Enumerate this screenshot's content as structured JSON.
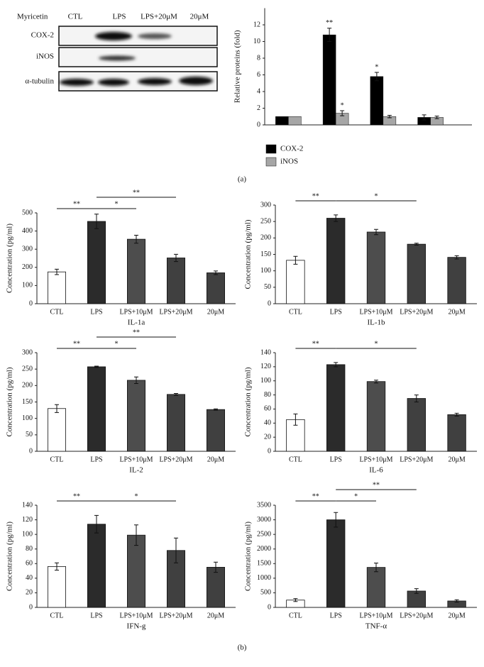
{
  "blot": {
    "treatment_label": "Myricetin",
    "lanes": [
      "CTL",
      "LPS",
      "LPS+20μM",
      "20μM"
    ],
    "rows": [
      "COX-2",
      "iNOS",
      "α-tubulin"
    ]
  },
  "panel_labels": [
    "(a)",
    "(b)"
  ],
  "chart_data": [
    {
      "type": "bar",
      "ylabel": "Relative proteins (fold)",
      "categories": [
        null,
        null,
        null,
        null
      ],
      "series": [
        {
          "name": "COX-2",
          "color": "#000000",
          "values": [
            1,
            10.8,
            5.8,
            0.9
          ],
          "errors": [
            0,
            0.8,
            0.5,
            0.3
          ],
          "significance": [
            null,
            "**",
            "*",
            null
          ]
        },
        {
          "name": "iNOS",
          "color": "#a6a6a6",
          "values": [
            1,
            1.4,
            1.0,
            0.9
          ],
          "errors": [
            0,
            0.3,
            0.15,
            0.15
          ],
          "significance": [
            null,
            "*",
            null,
            null
          ]
        }
      ],
      "ylim": [
        0,
        14
      ],
      "yticks": [
        0,
        2,
        4,
        6,
        8,
        10,
        12
      ],
      "legend": "bottom"
    },
    {
      "type": "bar",
      "xlabel": "IL-1a",
      "ylabel": "Concentration (pg/ml)",
      "categories": [
        "CTL",
        "LPS",
        "LPS+10μM",
        "LPS+20μM",
        "20μM"
      ],
      "values": [
        175,
        453,
        355,
        252,
        170
      ],
      "errors": [
        15,
        40,
        22,
        20,
        10
      ],
      "colors": [
        "#ffffff",
        "#2b2b2b",
        "#4d4d4d",
        "#404040",
        "#404040"
      ],
      "ylim": [
        0,
        500
      ],
      "yticks": [
        0,
        100,
        200,
        300,
        400,
        500
      ],
      "comparisons": [
        {
          "between": [
            0,
            1
          ],
          "label": "**"
        },
        {
          "between": [
            1,
            2
          ],
          "label": "*"
        },
        {
          "between": [
            1,
            3
          ],
          "label": "**"
        }
      ]
    },
    {
      "type": "bar",
      "xlabel": "IL-1b",
      "ylabel": "Concentration (pg/ml)",
      "categories": [
        "CTL",
        "LPS",
        "LPS+10μM",
        "LPS+20μM",
        "20μM"
      ],
      "values": [
        132,
        260,
        218,
        181,
        141
      ],
      "errors": [
        12,
        10,
        8,
        3,
        5
      ],
      "colors": [
        "#ffffff",
        "#2b2b2b",
        "#4d4d4d",
        "#404040",
        "#404040"
      ],
      "ylim": [
        0,
        300
      ],
      "yticks": [
        0,
        50,
        100,
        150,
        200,
        250,
        300
      ],
      "comparisons": [
        {
          "between": [
            0,
            1
          ],
          "label": "**"
        },
        {
          "between": [
            1,
            3
          ],
          "label": "*"
        }
      ]
    },
    {
      "type": "bar",
      "xlabel": "IL-2",
      "ylabel": "Concentration (pg/ml)",
      "categories": [
        "CTL",
        "LPS",
        "LPS+10μM",
        "LPS+20μM",
        "20μM"
      ],
      "values": [
        130,
        257,
        216,
        173,
        127
      ],
      "errors": [
        12,
        2,
        10,
        3,
        2
      ],
      "colors": [
        "#ffffff",
        "#2b2b2b",
        "#4d4d4d",
        "#404040",
        "#404040"
      ],
      "ylim": [
        0,
        300
      ],
      "yticks": [
        0,
        50,
        100,
        150,
        200,
        250,
        300
      ],
      "comparisons": [
        {
          "between": [
            0,
            1
          ],
          "label": "**"
        },
        {
          "between": [
            1,
            2
          ],
          "label": "*"
        },
        {
          "between": [
            1,
            3
          ],
          "label": "**"
        }
      ]
    },
    {
      "type": "bar",
      "xlabel": "IL-6",
      "ylabel": "Concentration (pg/ml)",
      "categories": [
        "CTL",
        "LPS",
        "LPS+10μM",
        "LPS+20μM",
        "20μM"
      ],
      "values": [
        45,
        123,
        99,
        75,
        52
      ],
      "errors": [
        8,
        3,
        2,
        5,
        2
      ],
      "colors": [
        "#ffffff",
        "#2b2b2b",
        "#4d4d4d",
        "#404040",
        "#404040"
      ],
      "ylim": [
        0,
        140
      ],
      "yticks": [
        0,
        20,
        40,
        60,
        80,
        100,
        120,
        140
      ],
      "comparisons": [
        {
          "between": [
            0,
            1
          ],
          "label": "**"
        },
        {
          "between": [
            1,
            3
          ],
          "label": "*"
        }
      ]
    },
    {
      "type": "bar",
      "xlabel": "IFN-g",
      "ylabel": "Concentration (pg/ml)",
      "categories": [
        "CTL",
        "LPS",
        "LPS+10μM",
        "LPS+20μM",
        "20μM"
      ],
      "values": [
        56,
        114,
        99,
        78,
        55
      ],
      "errors": [
        5,
        12,
        14,
        17,
        7
      ],
      "colors": [
        "#ffffff",
        "#2b2b2b",
        "#4d4d4d",
        "#404040",
        "#404040"
      ],
      "ylim": [
        0,
        140
      ],
      "yticks": [
        0,
        20,
        40,
        60,
        80,
        100,
        120,
        140
      ],
      "comparisons": [
        {
          "between": [
            0,
            1
          ],
          "label": "**"
        },
        {
          "between": [
            1,
            3
          ],
          "label": "*"
        }
      ]
    },
    {
      "type": "bar",
      "xlabel": "TNF-α",
      "ylabel": "Concentration (pg/ml)",
      "categories": [
        "CTL",
        "LPS",
        "LPS+10μM",
        "LPS+20μM",
        "20μM"
      ],
      "values": [
        250,
        3000,
        1370,
        560,
        220
      ],
      "errors": [
        50,
        250,
        150,
        80,
        40
      ],
      "colors": [
        "#ffffff",
        "#2b2b2b",
        "#4d4d4d",
        "#404040",
        "#404040"
      ],
      "ylim": [
        0,
        3500
      ],
      "yticks": [
        0,
        500,
        1000,
        1500,
        2000,
        2500,
        3000,
        3500
      ],
      "comparisons": [
        {
          "between": [
            0,
            1
          ],
          "label": "**"
        },
        {
          "between": [
            1,
            2
          ],
          "label": "*"
        },
        {
          "between": [
            1,
            3
          ],
          "label": "**"
        }
      ]
    }
  ]
}
